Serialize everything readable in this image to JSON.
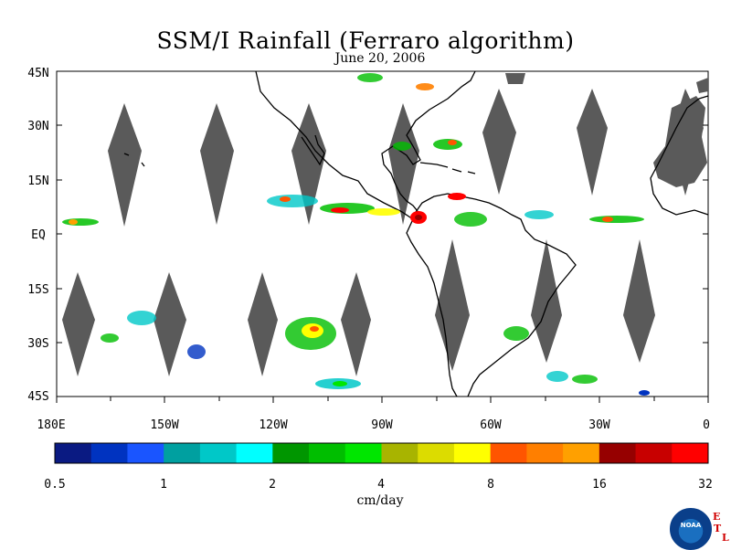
{
  "title": "SSM/I Rainfall (Ferraro algorithm)",
  "date": "June 20, 2006",
  "lat_labels": [
    "45N",
    "30N",
    "15N",
    "EQ",
    "15S",
    "30S",
    "45S"
  ],
  "lon_labels": [
    "180E",
    "150W",
    "120W",
    "90W",
    "60W",
    "30W",
    "0"
  ],
  "colorbar": {
    "ticks": [
      "0.5",
      "1",
      "2",
      "4",
      "8",
      "16",
      "32"
    ],
    "colors": [
      "#0a1a82",
      "#0033c0",
      "#1a55ff",
      "#00a0a0",
      "#00c8c8",
      "#00ffff",
      "#009600",
      "#00be00",
      "#00e600",
      "#a8b400",
      "#dcdc00",
      "#ffff00",
      "#ff5500",
      "#ff7f00",
      "#ffa000",
      "#960000",
      "#c80000",
      "#ff0000"
    ],
    "units": "cm/day"
  },
  "logo": {
    "text": "NOAA",
    "letters": [
      "E",
      "T",
      "L"
    ]
  },
  "colors": {
    "land": "#5a5a5a",
    "gap": "#5a5a5a",
    "coast": "#000000"
  }
}
